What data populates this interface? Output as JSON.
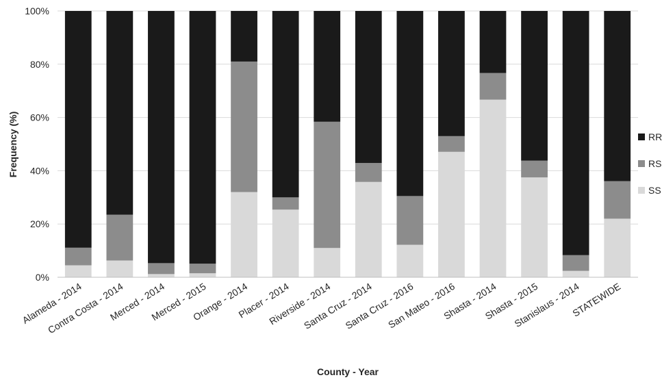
{
  "chart_data": {
    "type": "bar",
    "stacked": true,
    "xlabel": "County - Year",
    "ylabel": "Frequency (%)",
    "ylim": [
      0,
      100
    ],
    "yticks": [
      "0%",
      "20%",
      "40%",
      "60%",
      "80%",
      "100%"
    ],
    "categories": [
      "Alameda - 2014",
      "Contra Costa - 2014",
      "Merced - 2014",
      "Merced - 2015",
      "Orange - 2014",
      "Placer - 2014",
      "Riverside - 2014",
      "Santa Cruz - 2014",
      "Santa Cruz - 2016",
      "San Mateo - 2016",
      "Shasta - 2014",
      "Shasta - 2015",
      "Stanislaus - 2014",
      "STATEWIDE"
    ],
    "series": [
      {
        "name": "SS",
        "color": "#d9d9d9",
        "values": [
          4.5,
          6.3,
          1.2,
          1.5,
          32.0,
          25.4,
          11.0,
          35.8,
          12.2,
          47.1,
          66.7,
          37.5,
          2.4,
          22.0
        ]
      },
      {
        "name": "RS",
        "color": "#8c8c8c",
        "values": [
          6.6,
          17.2,
          4.1,
          3.6,
          49.0,
          4.6,
          47.4,
          7.1,
          18.3,
          5.9,
          10.0,
          6.3,
          5.9,
          14.1
        ]
      },
      {
        "name": "RR",
        "color": "#1a1a1a",
        "values": [
          88.9,
          76.5,
          94.7,
          94.9,
          19.0,
          70.0,
          41.6,
          57.1,
          69.5,
          47.0,
          23.3,
          56.2,
          91.7,
          63.9
        ]
      }
    ],
    "legend": {
      "position": "right",
      "order": [
        "RR",
        "RS",
        "SS"
      ]
    },
    "grid": true
  }
}
